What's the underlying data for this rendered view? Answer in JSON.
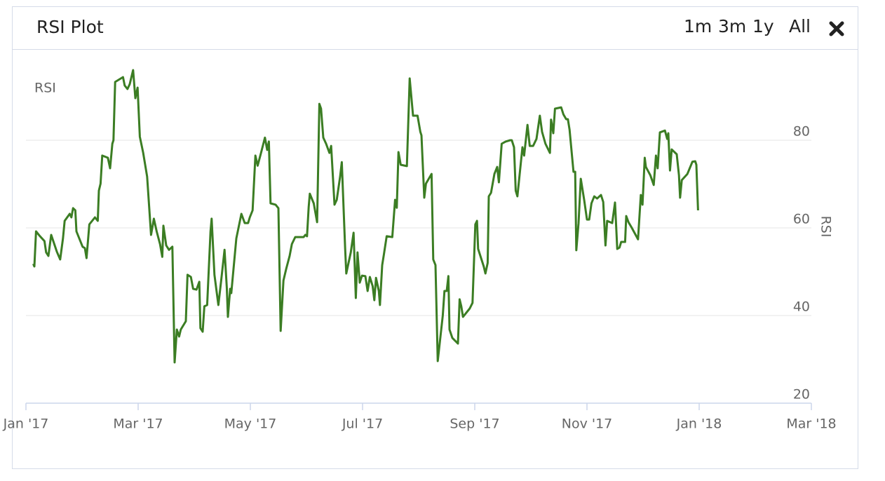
{
  "panel": {
    "title": "RSI Plot",
    "buttons": [
      "1m",
      "3m",
      "1y",
      "All"
    ]
  },
  "chart_data": {
    "type": "line",
    "x": [
      0.13,
      0.15,
      0.18,
      0.25,
      0.33,
      0.36,
      0.4,
      0.45,
      0.5,
      0.55,
      0.61,
      0.66,
      0.69,
      0.78,
      0.81,
      0.84,
      0.88,
      0.9,
      0.95,
      1.01,
      1.05,
      1.08,
      1.13,
      1.23,
      1.28,
      1.3,
      1.33,
      1.36,
      1.46,
      1.5,
      1.54,
      1.56,
      1.59,
      1.73,
      1.76,
      1.81,
      1.85,
      1.91,
      1.95,
      1.99,
      2.03,
      2.09,
      2.16,
      2.23,
      2.28,
      2.33,
      2.39,
      2.43,
      2.45,
      2.5,
      2.55,
      2.61,
      2.65,
      2.69,
      2.73,
      2.76,
      2.85,
      2.88,
      2.94,
      2.98,
      3.04,
      3.09,
      3.11,
      3.15,
      3.18,
      3.23,
      3.29,
      3.31,
      3.36,
      3.43,
      3.48,
      3.54,
      3.58,
      3.6,
      3.64,
      3.66,
      3.75,
      3.84,
      3.9,
      3.96,
      3.99,
      4.04,
      4.09,
      4.13,
      4.19,
      4.26,
      4.3,
      4.33,
      4.36,
      4.45,
      4.5,
      4.54,
      4.59,
      4.64,
      4.7,
      4.74,
      4.8,
      4.95,
      4.98,
      5.01,
      5.04,
      5.06,
      5.13,
      5.19,
      5.23,
      5.26,
      5.3,
      5.35,
      5.41,
      5.44,
      5.5,
      5.54,
      5.6,
      5.63,
      5.69,
      5.71,
      5.79,
      5.84,
      5.88,
      5.91,
      5.95,
      5.99,
      6.05,
      6.09,
      6.13,
      6.18,
      6.21,
      6.24,
      6.29,
      6.31,
      6.35,
      6.38,
      6.43,
      6.53,
      6.58,
      6.61,
      6.64,
      6.68,
      6.79,
      6.84,
      6.9,
      6.98,
      7.03,
      7.05,
      7.1,
      7.13,
      7.23,
      7.26,
      7.3,
      7.34,
      7.43,
      7.46,
      7.5,
      7.53,
      7.55,
      7.6,
      7.7,
      7.73,
      7.76,
      7.79,
      7.91,
      7.96,
      8.01,
      8.04,
      8.06,
      8.16,
      8.19,
      8.23,
      8.25,
      8.29,
      8.35,
      8.4,
      8.43,
      8.48,
      8.55,
      8.63,
      8.66,
      8.7,
      8.73,
      8.76,
      8.85,
      8.88,
      8.94,
      8.98,
      9.04,
      9.1,
      9.16,
      9.2,
      9.26,
      9.34,
      9.36,
      9.4,
      9.43,
      9.54,
      9.58,
      9.63,
      9.66,
      9.69,
      9.76,
      9.79,
      9.81,
      9.85,
      9.89,
      9.95,
      10.0,
      10.04,
      10.08,
      10.13,
      10.18,
      10.25,
      10.29,
      10.33,
      10.36,
      10.45,
      10.5,
      10.54,
      10.58,
      10.61,
      10.68,
      10.7,
      10.74,
      10.8,
      10.91,
      10.96,
      10.99,
      11.03,
      11.05,
      11.13,
      11.19,
      11.23,
      11.26,
      11.3,
      11.39,
      11.43,
      11.45,
      11.48,
      11.51,
      11.6,
      11.64,
      11.66,
      11.69,
      11.79,
      11.88,
      11.93,
      11.95,
      11.98
    ],
    "series": [
      {
        "name": "RSI",
        "color": "#3b7d23",
        "values": [
          51.8,
          51.2,
          59.2,
          58.1,
          57.0,
          54.4,
          53.6,
          58.4,
          56.5,
          54.6,
          52.8,
          57.6,
          61.6,
          63.2,
          62.4,
          64.5,
          64.0,
          59.2,
          57.6,
          55.7,
          55.4,
          53.1,
          60.8,
          62.4,
          61.6,
          68.5,
          70.1,
          76.5,
          76.0,
          73.6,
          79.2,
          80.0,
          93.3,
          94.4,
          92.5,
          91.7,
          92.8,
          96.0,
          89.6,
          92.0,
          80.8,
          77.1,
          71.7,
          58.4,
          62.1,
          59.2,
          56.3,
          53.4,
          60.5,
          56.0,
          55.0,
          55.7,
          29.3,
          36.8,
          35.2,
          36.8,
          38.7,
          49.3,
          48.8,
          46.1,
          45.9,
          47.7,
          37.1,
          36.3,
          42.1,
          42.4,
          59.2,
          62.1,
          49.3,
          42.4,
          48.0,
          55.0,
          46.4,
          39.7,
          46.1,
          45.1,
          57.6,
          63.2,
          61.1,
          61.1,
          62.4,
          64.0,
          76.5,
          74.2,
          77.1,
          80.6,
          77.8,
          79.7,
          65.6,
          65.3,
          64.5,
          36.5,
          48.0,
          50.7,
          53.6,
          56.3,
          57.9,
          57.9,
          58.4,
          58.1,
          64.8,
          67.8,
          65.6,
          61.3,
          88.3,
          87.2,
          80.6,
          79.2,
          77.1,
          78.7,
          65.3,
          66.4,
          71.7,
          75.0,
          55.2,
          49.6,
          54.4,
          58.9,
          44.0,
          54.4,
          47.5,
          49.1,
          49.0,
          45.6,
          48.8,
          46.7,
          43.5,
          48.6,
          45.6,
          42.4,
          51.5,
          53.9,
          58.1,
          57.9,
          66.4,
          64.6,
          77.3,
          74.4,
          74.1,
          94.1,
          85.6,
          85.6,
          81.9,
          81.1,
          66.9,
          70.1,
          72.3,
          52.8,
          51.5,
          29.6,
          40.0,
          45.6,
          45.6,
          49.0,
          36.8,
          34.9,
          33.6,
          43.7,
          42.1,
          39.7,
          41.6,
          42.9,
          60.8,
          61.6,
          55.2,
          51.2,
          49.6,
          52.0,
          67.2,
          68.0,
          72.3,
          73.9,
          70.4,
          79.2,
          79.7,
          80.0,
          80.0,
          78.4,
          68.5,
          67.2,
          78.4,
          76.5,
          83.5,
          78.7,
          78.7,
          80.3,
          85.6,
          81.9,
          79.2,
          77.1,
          84.7,
          81.6,
          87.2,
          87.5,
          85.9,
          84.8,
          84.8,
          82.4,
          72.8,
          72.8,
          54.9,
          61.1,
          71.2,
          66.4,
          61.9,
          61.9,
          65.6,
          67.2,
          66.7,
          67.5,
          65.9,
          56.0,
          61.6,
          61.1,
          65.8,
          55.2,
          55.5,
          56.8,
          56.8,
          62.7,
          61.3,
          60.0,
          57.4,
          67.5,
          65.3,
          76.0,
          73.9,
          72.0,
          69.8,
          76.5,
          73.6,
          81.8,
          82.2,
          80.3,
          81.6,
          73.1,
          77.9,
          76.8,
          72.0,
          66.9,
          70.9,
          72.3,
          75.1,
          75.2,
          74.4,
          64.0
        ]
      }
    ],
    "ylabel": "RSI",
    "xlim": [
      0,
      14
    ],
    "xticks": [
      {
        "value": 0,
        "label": "Jan '17"
      },
      {
        "value": 2,
        "label": "Mar '17"
      },
      {
        "value": 4,
        "label": "May '17"
      },
      {
        "value": 6,
        "label": "Jul '17"
      },
      {
        "value": 8,
        "label": "Sep '17"
      },
      {
        "value": 10,
        "label": "Nov '17"
      },
      {
        "value": 12,
        "label": "Jan '18"
      },
      {
        "value": 14,
        "label": "Mar '18"
      }
    ],
    "ylim": [
      20,
      100
    ],
    "yticks": [
      20,
      40,
      60,
      80
    ],
    "grid": true
  }
}
